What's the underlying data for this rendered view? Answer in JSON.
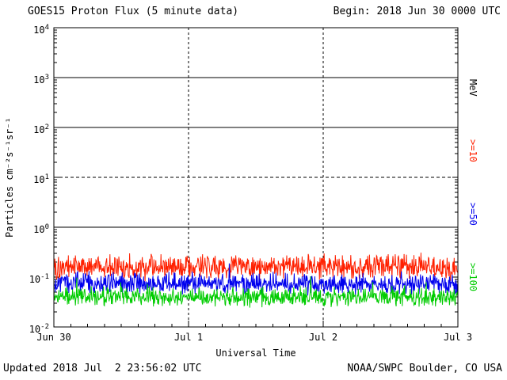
{
  "header": {
    "begin_label": "Begin: 2018 Jun 30 0000 UTC"
  },
  "footer": {
    "updated": "Updated 2018 Jul  2 23:56:02 UTC",
    "credit": "NOAA/SWPC Boulder, CO USA"
  },
  "chart_data": {
    "type": "line",
    "title": "GOES15 Proton Flux (5 minute data)",
    "xlabel": "Universal Time",
    "ylabel": "Particles cm⁻²s⁻¹sr⁻¹",
    "unit_label": "MeV",
    "y_scale": "log",
    "y_min": 0.01,
    "y_max": 10000,
    "y_tick_exponents": [
      4,
      3,
      2,
      1,
      0,
      -1,
      -2
    ],
    "solid_hline_exponents": [
      3,
      2,
      0
    ],
    "dashed_hline_exponents": [
      1
    ],
    "dashed_vline_days": [
      1,
      2
    ],
    "x_ticks": [
      "Jun 30",
      "Jul 1",
      "Jul 2",
      "Jul 3"
    ],
    "x_range_days": 3,
    "points_per_day": 288,
    "series": [
      {
        "name": ">=10",
        "unit": "MeV",
        "color": "#ff2000",
        "baseline_flux": 0.16,
        "noise_decades": 0.3,
        "spike_chance": 0.02,
        "seed": 101
      },
      {
        "name": ">=50",
        "unit": "MeV",
        "color": "#0000ee",
        "baseline_flux": 0.075,
        "noise_decades": 0.25,
        "spike_chance": 0.01,
        "seed": 202
      },
      {
        "name": ">=100",
        "unit": "MeV",
        "color": "#00cc00",
        "baseline_flux": 0.04,
        "noise_decades": 0.22,
        "spike_chance": 0.01,
        "seed": 303
      }
    ]
  }
}
